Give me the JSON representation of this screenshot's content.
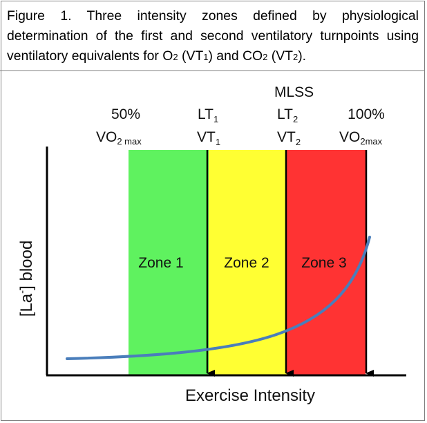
{
  "caption": {
    "part1": "Figure 1. Three intensity zones defined by physiological determination of the first and second ventilatory turnpoints using ventilatory equivalents for O",
    "o2_sub": "2",
    "part2": " (VT",
    "vt1_sub": "1",
    "part3": ") and CO",
    "co2_sub": "2",
    "part4": " (VT",
    "vt2_sub": "2",
    "part5": ")."
  },
  "diagram": {
    "y_axis_label": "[La",
    "y_axis_label_sup": "-",
    "y_axis_label_end": "] blood",
    "x_axis_label": "Exercise Intensity",
    "markers": {
      "m50": {
        "pct": "50%",
        "vo": "VO",
        "sub": "2 max"
      },
      "lt1": {
        "lt": "LT",
        "lt_sub": "1",
        "vt": "VT",
        "vt_sub": "1"
      },
      "lt2": {
        "mlss": "MLSS",
        "lt": "LT",
        "lt_sub": "2",
        "vt": "VT",
        "vt_sub": "2"
      },
      "m100": {
        "pct": "100%",
        "vo": "VO",
        "sub": "2max"
      }
    },
    "zones": [
      {
        "label": "Zone 1",
        "color": "#5ff25f"
      },
      {
        "label": "Zone 2",
        "color": "#ffff33"
      },
      {
        "label": "Zone 3",
        "color": "#ff3333"
      }
    ],
    "curve_color": "#4a7ebb"
  }
}
